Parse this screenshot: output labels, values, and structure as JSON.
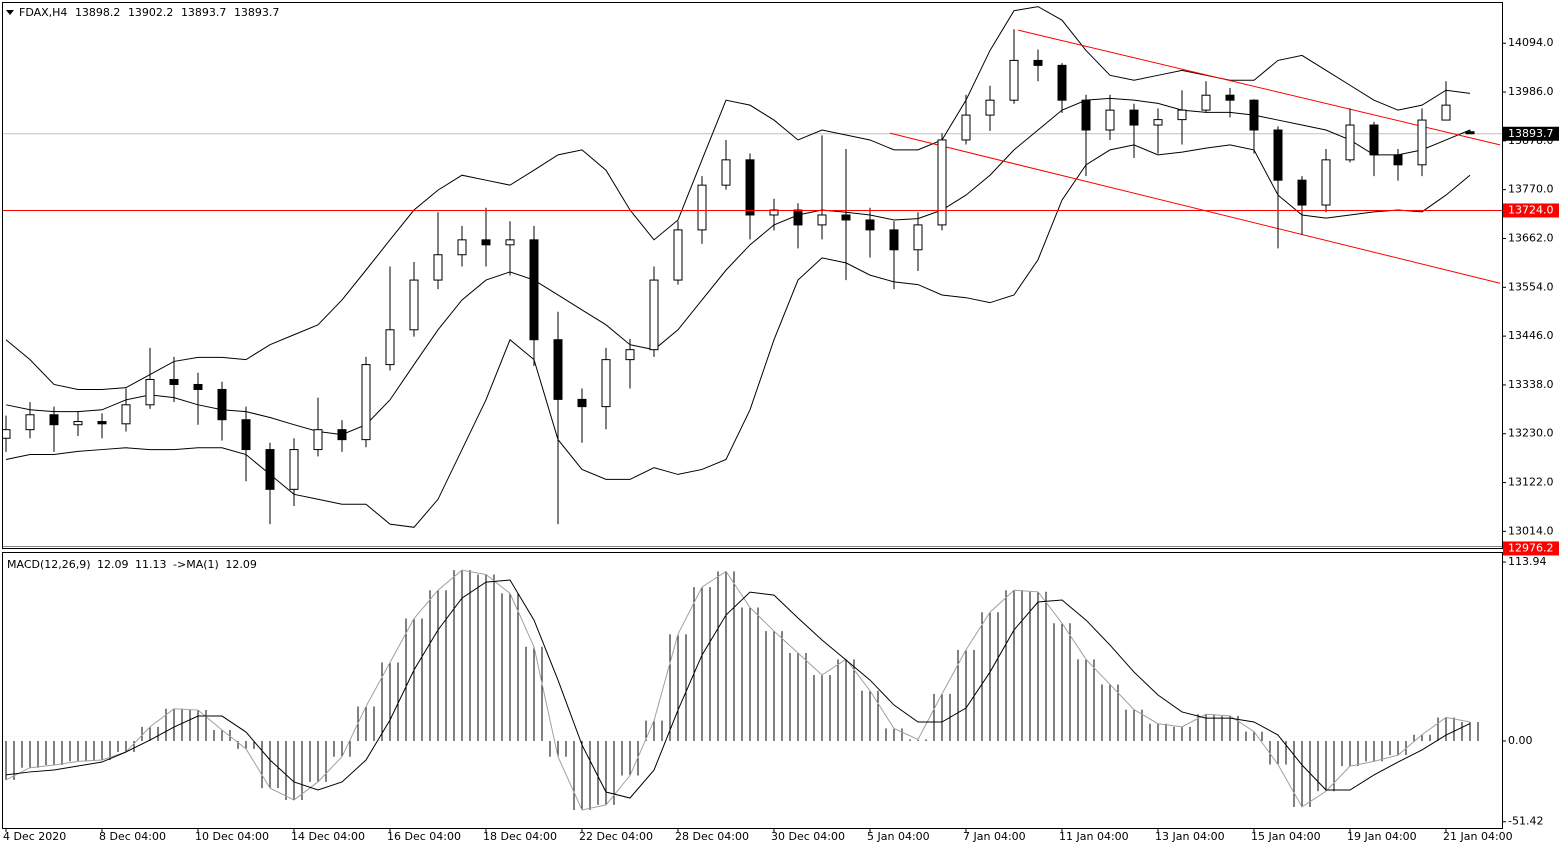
{
  "chart_data": {
    "type": "candlestick",
    "symbol": "FDAX,H4",
    "categories": [
      "4 Dec 2020",
      null,
      null,
      null,
      "8 Dec 04:00",
      null,
      null,
      null,
      "10 Dec 04:00",
      null,
      null,
      null,
      "14 Dec 04:00",
      null,
      null,
      null,
      "16 Dec 04:00",
      null,
      null,
      null,
      "18 Dec 04:00",
      null,
      null,
      null,
      "22 Dec 04:00",
      null,
      null,
      null,
      "28 Dec 04:00",
      null,
      null,
      null,
      "30 Dec 04:00",
      null,
      null,
      null,
      "5 Jan 04:00",
      null,
      null,
      null,
      "7 Jan 04:00",
      null,
      null,
      null,
      "11 Jan 04:00",
      null,
      null,
      null,
      "13 Jan 04:00",
      null,
      null,
      null,
      "15 Jan 04:00",
      null,
      null,
      null,
      "19 Jan 04:00",
      null,
      null,
      null,
      "21 Jan 04:00",
      null
    ],
    "open": [
      13220,
      13239,
      13272,
      13250,
      13257,
      13252,
      13294,
      13350,
      13339,
      13328,
      13261,
      13195,
      13107,
      13195,
      13239,
      13217,
      13383,
      13460,
      13570,
      13626,
      13659,
      13648,
      13659,
      13438,
      13306,
      13290,
      13394,
      13416,
      13570,
      13681,
      13780,
      13836,
      13714,
      13725,
      13692,
      13714,
      13703,
      13681,
      13637,
      13692,
      13880,
      13935,
      13968,
      14056,
      14045,
      13968,
      13902,
      13946,
      13913,
      13925,
      13946,
      13979,
      13968,
      13902,
      13791,
      13736,
      13836,
      13913,
      13847,
      13825,
      13924,
      13898.2
    ],
    "high": [
      13270,
      13300,
      13290,
      13280,
      13275,
      13330,
      13420,
      13400,
      13365,
      13345,
      13290,
      13210,
      13220,
      13310,
      13260,
      13400,
      13600,
      13610,
      13720,
      13690,
      13730,
      13700,
      13690,
      13500,
      13330,
      13420,
      13440,
      13600,
      13700,
      13800,
      13880,
      13850,
      13750,
      13740,
      13890,
      13860,
      13730,
      13700,
      13720,
      13895,
      13980,
      14000,
      14125,
      14080,
      14050,
      13980,
      13980,
      13960,
      13950,
      13990,
      14010,
      13995,
      13970,
      13910,
      13800,
      13860,
      13950,
      13920,
      13860,
      13950,
      14010,
      13902.2
    ],
    "low": [
      13190,
      13220,
      13190,
      13225,
      13220,
      13235,
      13285,
      13300,
      13250,
      13215,
      13125,
      13030,
      13070,
      13180,
      13190,
      13200,
      13370,
      13445,
      13550,
      13600,
      13600,
      13580,
      13380,
      13030,
      13210,
      13240,
      13330,
      13400,
      13560,
      13650,
      13770,
      13660,
      13680,
      13640,
      13660,
      13570,
      13620,
      13550,
      13590,
      13680,
      13870,
      13900,
      13960,
      14010,
      13940,
      13800,
      13880,
      13840,
      13850,
      13870,
      13940,
      13930,
      13850,
      13640,
      13670,
      13720,
      13830,
      13800,
      13790,
      13800,
      13930,
      13893.7
    ],
    "close": [
      13239,
      13272,
      13250,
      13257,
      13252,
      13294,
      13350,
      13339,
      13328,
      13261,
      13195,
      13107,
      13195,
      13239,
      13217,
      13383,
      13460,
      13570,
      13626,
      13659,
      13648,
      13659,
      13438,
      13306,
      13290,
      13394,
      13416,
      13570,
      13681,
      13780,
      13836,
      13714,
      13725,
      13692,
      13714,
      13703,
      13681,
      13637,
      13692,
      13880,
      13935,
      13968,
      14056,
      14045,
      13968,
      13902,
      13946,
      13913,
      13925,
      13946,
      13979,
      13968,
      13902,
      13791,
      13736,
      13836,
      13913,
      13847,
      13825,
      13924,
      13957,
      13893.7
    ],
    "bands": {
      "upper": [
        13438,
        13394,
        13339,
        13328,
        13328,
        13332,
        13361,
        13390,
        13399,
        13399,
        13394,
        13427,
        13449,
        13471,
        13526,
        13592,
        13659,
        13725,
        13769,
        13802,
        13791,
        13780,
        13813,
        13847,
        13858,
        13813,
        13725,
        13659,
        13703,
        13836,
        13968,
        13957,
        13924,
        13880,
        13902,
        13891,
        13880,
        13858,
        13858,
        13880,
        13968,
        14078,
        14166,
        14175,
        14145,
        14078,
        14023,
        14012,
        14023,
        14034,
        14023,
        14012,
        14012,
        14056,
        14067,
        14034,
        14001,
        13968,
        13946,
        13957,
        13990,
        13983
      ],
      "middle": [
        13294,
        13283,
        13279,
        13279,
        13283,
        13305,
        13316,
        13310,
        13294,
        13283,
        13279,
        13266,
        13250,
        13235,
        13228,
        13250,
        13305,
        13383,
        13460,
        13526,
        13570,
        13588,
        13570,
        13537,
        13504,
        13471,
        13427,
        13416,
        13460,
        13526,
        13592,
        13648,
        13692,
        13714,
        13725,
        13720,
        13714,
        13703,
        13706,
        13725,
        13758,
        13802,
        13858,
        13902,
        13946,
        13968,
        13972,
        13968,
        13961,
        13946,
        13941,
        13941,
        13935,
        13924,
        13913,
        13902,
        13880,
        13847,
        13847,
        13858,
        13880,
        13902
      ],
      "lower": [
        13173,
        13184,
        13184,
        13191,
        13195,
        13199,
        13195,
        13195,
        13199,
        13199,
        13184,
        13140,
        13096,
        13085,
        13074,
        13074,
        13030,
        13023,
        13085,
        13195,
        13305,
        13438,
        13394,
        13217,
        13151,
        13129,
        13129,
        13155,
        13140,
        13151,
        13173,
        13283,
        13438,
        13570,
        13619,
        13608,
        13581,
        13566,
        13560,
        13537,
        13531,
        13520,
        13537,
        13615,
        13747,
        13825,
        13858,
        13869,
        13847,
        13853,
        13862,
        13869,
        13858,
        13758,
        13714,
        13707,
        13714,
        13721,
        13725,
        13721,
        13758,
        13802
      ]
    },
    "ylim": [
      12975,
      14183
    ],
    "yticks": [
      {
        "value": 13014,
        "label": "13014.0"
      },
      {
        "value": 13122,
        "label": "13122.0"
      },
      {
        "value": 13230,
        "label": "13230.0"
      },
      {
        "value": 13338,
        "label": "13338.0"
      },
      {
        "value": 13446,
        "label": "13446.0"
      },
      {
        "value": 13554,
        "label": "13554.0"
      },
      {
        "value": 13662,
        "label": "13662.0"
      },
      {
        "value": 13770,
        "label": "13770.0"
      },
      {
        "value": 13878,
        "label": "13878.0"
      },
      {
        "value": 13986,
        "label": "13986.0"
      },
      {
        "value": 14094,
        "label": "14094.0"
      }
    ],
    "hline": {
      "value": 13724,
      "label": "13724.0",
      "color": "#ff0000"
    },
    "bottom_level": {
      "value": 12976.2,
      "label": "12976.2",
      "color": "#ff0000"
    },
    "trendlines": [
      {
        "x": [
          42.17,
          62.25
        ],
        "y": [
          14123,
          13869
        ],
        "color": "#ff0000"
      },
      {
        "x": [
          36.83,
          62.25
        ],
        "y": [
          13895,
          13563
        ],
        "color": "#ff0000"
      }
    ],
    "macd": {
      "title": "MACD(12,26,9)",
      "ma_label": "->MA(1)",
      "histogram": [
        -24.8,
        -17,
        -15.3,
        -13,
        -12.1,
        -7,
        9,
        20.5,
        19.7,
        7,
        -5,
        -30,
        -37.6,
        -26,
        -10,
        22,
        50,
        78,
        96,
        108.8,
        106,
        94,
        60,
        -10,
        -43.9,
        -40.7,
        -22,
        13,
        68,
        98,
        108,
        85,
        70,
        56,
        42,
        52,
        32,
        8,
        1,
        30,
        58,
        82,
        96,
        95,
        75,
        52,
        36,
        20,
        11,
        9,
        17,
        16,
        6,
        -15,
        -42,
        -32,
        -16,
        -13,
        -9,
        4,
        15,
        12.09
      ],
      "signal": [
        -21.6,
        -19.7,
        -18.5,
        -15.9,
        -13.4,
        -7,
        0.6,
        8.9,
        15.9,
        15.9,
        5.7,
        -12.1,
        -26.1,
        -31.2,
        -26.1,
        -12.1,
        13.4,
        45.2,
        70.7,
        91,
        101.2,
        102.5,
        77,
        38.8,
        -2.5,
        -32.5,
        -36.3,
        -18.5,
        19.7,
        54.7,
        80.2,
        94.8,
        92.9,
        78.3,
        64.3,
        51.6,
        38.8,
        22.9,
        12.1,
        12.1,
        21,
        43.9,
        70.7,
        88.5,
        89.8,
        77,
        61.1,
        43.9,
        29.3,
        18.5,
        14.6,
        14.6,
        12.1,
        3.8,
        -15.3,
        -31.2,
        -31.2,
        -21.6,
        -13.4,
        -5.7,
        3.8,
        11.13
      ],
      "ylim": [
        -55.4,
        117.8
      ],
      "yticks": [
        113.94,
        {
          "value": 0,
          "label": "0.00"
        },
        -51.42
      ]
    }
  }
}
